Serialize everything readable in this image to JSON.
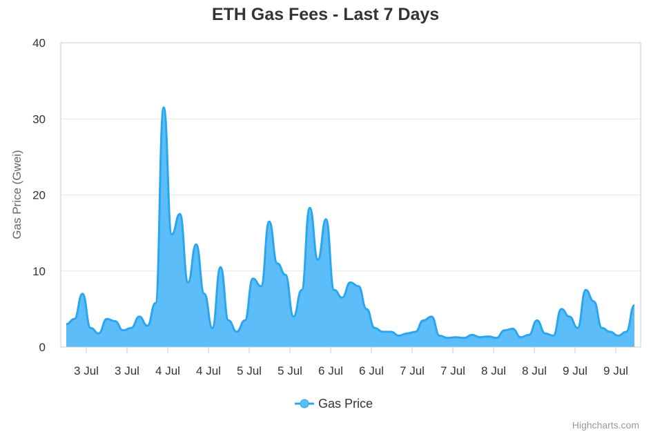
{
  "colors": {
    "series": "#2aa6f0",
    "fill": "#5cbdf9",
    "grid": "#e6e6e6",
    "axis": "#cccccc"
  },
  "credit": "Highcharts.com",
  "chart_data": {
    "type": "area",
    "title": "ETH Gas Fees - Last 7 Days",
    "ylabel": "Gas Price (Gwei)",
    "ylim": [
      0,
      40
    ],
    "yticks": [
      0,
      10,
      20,
      30,
      40
    ],
    "grid": true,
    "legend_position": "bottom-center",
    "xticks": [
      "3 Jul",
      "3 Jul",
      "4 Jul",
      "4 Jul",
      "5 Jul",
      "5 Jul",
      "6 Jul",
      "6 Jul",
      "7 Jul",
      "7 Jul",
      "8 Jul",
      "8 Jul",
      "9 Jul",
      "9 Jul"
    ],
    "series": [
      {
        "name": "Gas Price",
        "x": [
          0,
          0.2,
          0.4,
          0.6,
          0.8,
          1,
          1.2,
          1.4,
          1.6,
          1.8,
          2,
          2.2,
          2.4,
          2.6,
          2.8,
          3,
          3.2,
          3.4,
          3.6,
          3.8,
          4,
          4.2,
          4.4,
          4.6,
          4.8,
          5,
          5.2,
          5.4,
          5.6,
          5.8,
          6,
          6.2,
          6.4,
          6.6,
          6.8,
          7,
          7.2,
          7.4,
          7.6,
          7.8,
          8,
          8.2,
          8.4,
          8.6,
          8.8,
          9,
          9.2,
          9.4,
          9.6,
          9.8,
          10,
          10.2,
          10.4,
          10.6,
          10.8,
          11,
          11.2,
          11.4,
          11.6,
          11.8,
          12,
          12.2,
          12.4,
          12.6,
          12.8,
          13,
          13.2,
          13.4,
          13.6,
          13.8,
          14
        ],
        "values": [
          3,
          3.7,
          7,
          2.5,
          1.8,
          3.7,
          3.4,
          2.2,
          2.5,
          4,
          2.8,
          5.8,
          31.5,
          14.8,
          17.5,
          8.5,
          13.5,
          7,
          2.5,
          10.5,
          3.5,
          2,
          3.5,
          9,
          8,
          16.5,
          11,
          9.5,
          4,
          7.5,
          18.3,
          11.5,
          16.8,
          7.5,
          6.5,
          8.5,
          8,
          5,
          2.5,
          2,
          2,
          1.5,
          1.8,
          2,
          3.5,
          4,
          1.5,
          1.2,
          1.3,
          1.2,
          1.6,
          1.3,
          1.4,
          1.2,
          2.2,
          2.4,
          1.3,
          1.6,
          3.5,
          1.8,
          1.5,
          5,
          4,
          2.5,
          7.5,
          6,
          2.5,
          2,
          1.5,
          2,
          5.5
        ]
      }
    ]
  }
}
